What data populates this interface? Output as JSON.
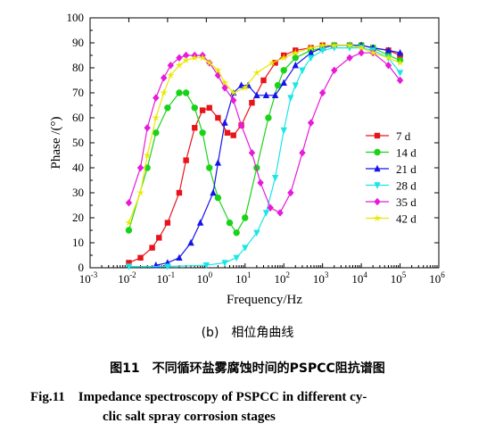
{
  "chart_data": {
    "type": "line",
    "xlabel": "Frequency/Hz",
    "ylabel": "Phase /(°)",
    "x_scale": "log",
    "xlim": [
      0.001,
      1000000
    ],
    "ylim": [
      0,
      100
    ],
    "x_ticks": [
      0.001,
      0.01,
      0.1,
      1,
      10,
      100,
      1000,
      10000,
      100000,
      1000000
    ],
    "x_tick_labels": [
      [
        "10",
        "-3"
      ],
      [
        "10",
        "-2"
      ],
      [
        "10",
        "-1"
      ],
      [
        "10",
        "0"
      ],
      [
        "10",
        "1"
      ],
      [
        "10",
        "2"
      ],
      [
        "10",
        "3"
      ],
      [
        "10",
        "4"
      ],
      [
        "10",
        "5"
      ],
      [
        "10",
        "6"
      ]
    ],
    "y_ticks": [
      0,
      10,
      20,
      30,
      40,
      50,
      60,
      70,
      80,
      90,
      100
    ],
    "legend_position": "right",
    "series": [
      {
        "name": "7 d",
        "color": "#e8141b",
        "marker": "square",
        "points": [
          [
            0.01,
            2
          ],
          [
            0.02,
            4
          ],
          [
            0.04,
            8
          ],
          [
            0.06,
            12
          ],
          [
            0.1,
            18
          ],
          [
            0.2,
            30
          ],
          [
            0.3,
            43
          ],
          [
            0.5,
            56
          ],
          [
            0.8,
            63
          ],
          [
            1.2,
            64
          ],
          [
            2,
            60
          ],
          [
            3.5,
            54
          ],
          [
            5,
            53
          ],
          [
            8,
            57
          ],
          [
            15,
            66
          ],
          [
            30,
            75
          ],
          [
            60,
            82
          ],
          [
            100,
            85
          ],
          [
            200,
            87
          ],
          [
            500,
            88
          ],
          [
            1000,
            89
          ],
          [
            2000,
            89
          ],
          [
            5000,
            89
          ],
          [
            10000,
            89
          ],
          [
            20000,
            88
          ],
          [
            50000,
            87
          ],
          [
            100000,
            85
          ]
        ]
      },
      {
        "name": "14 d",
        "color": "#19d319",
        "marker": "circle",
        "points": [
          [
            0.01,
            15
          ],
          [
            0.03,
            40
          ],
          [
            0.05,
            54
          ],
          [
            0.1,
            64
          ],
          [
            0.2,
            70
          ],
          [
            0.3,
            70
          ],
          [
            0.5,
            64
          ],
          [
            0.8,
            54
          ],
          [
            1.2,
            40
          ],
          [
            2,
            28
          ],
          [
            4,
            18
          ],
          [
            6,
            14
          ],
          [
            10,
            20
          ],
          [
            20,
            40
          ],
          [
            40,
            60
          ],
          [
            70,
            73
          ],
          [
            100,
            79
          ],
          [
            200,
            84
          ],
          [
            500,
            87
          ],
          [
            1000,
            88
          ],
          [
            2000,
            89
          ],
          [
            5000,
            89
          ],
          [
            10000,
            89
          ],
          [
            20000,
            88
          ],
          [
            50000,
            85
          ],
          [
            100000,
            83
          ]
        ]
      },
      {
        "name": "21 d",
        "color": "#1515e8",
        "marker": "triangle-up",
        "points": [
          [
            0.05,
            1
          ],
          [
            0.1,
            2
          ],
          [
            0.2,
            4
          ],
          [
            0.4,
            10
          ],
          [
            0.7,
            18
          ],
          [
            1.5,
            30
          ],
          [
            2,
            42
          ],
          [
            3,
            58
          ],
          [
            5,
            70
          ],
          [
            8,
            73
          ],
          [
            12,
            73
          ],
          [
            20,
            69
          ],
          [
            35,
            69
          ],
          [
            60,
            69
          ],
          [
            100,
            74
          ],
          [
            200,
            81
          ],
          [
            500,
            86
          ],
          [
            1000,
            88
          ],
          [
            2000,
            89
          ],
          [
            5000,
            89
          ],
          [
            10000,
            89
          ],
          [
            20000,
            88
          ],
          [
            50000,
            87
          ],
          [
            100000,
            86
          ]
        ]
      },
      {
        "name": "28 d",
        "color": "#19e6e6",
        "marker": "triangle-down",
        "points": [
          [
            0.01,
            0.5
          ],
          [
            0.1,
            0.5
          ],
          [
            1,
            1
          ],
          [
            3,
            2
          ],
          [
            6,
            4
          ],
          [
            10,
            8
          ],
          [
            20,
            14
          ],
          [
            35,
            22
          ],
          [
            60,
            36
          ],
          [
            100,
            55
          ],
          [
            150,
            68
          ],
          [
            200,
            73
          ],
          [
            300,
            79
          ],
          [
            500,
            84
          ],
          [
            1000,
            87
          ],
          [
            2000,
            88
          ],
          [
            5000,
            88
          ],
          [
            10000,
            88
          ],
          [
            20000,
            87
          ],
          [
            50000,
            84
          ],
          [
            100000,
            78
          ]
        ]
      },
      {
        "name": "35 d",
        "color": "#e61ad9",
        "marker": "diamond",
        "points": [
          [
            0.01,
            26
          ],
          [
            0.02,
            40
          ],
          [
            0.03,
            56
          ],
          [
            0.05,
            68
          ],
          [
            0.08,
            76
          ],
          [
            0.12,
            81
          ],
          [
            0.2,
            84
          ],
          [
            0.3,
            85
          ],
          [
            0.5,
            85
          ],
          [
            0.8,
            85
          ],
          [
            1.2,
            82
          ],
          [
            2,
            77
          ],
          [
            3,
            72
          ],
          [
            5,
            67
          ],
          [
            8,
            57
          ],
          [
            15,
            46
          ],
          [
            25,
            34
          ],
          [
            45,
            24
          ],
          [
            80,
            22
          ],
          [
            150,
            30
          ],
          [
            300,
            46
          ],
          [
            500,
            58
          ],
          [
            1000,
            70
          ],
          [
            2000,
            79
          ],
          [
            5000,
            84
          ],
          [
            10000,
            86
          ],
          [
            20000,
            86
          ],
          [
            50000,
            81
          ],
          [
            100000,
            75
          ]
        ]
      },
      {
        "name": "42 d",
        "color": "#e8e800",
        "marker": "star",
        "points": [
          [
            0.01,
            18
          ],
          [
            0.02,
            30
          ],
          [
            0.03,
            45
          ],
          [
            0.05,
            60
          ],
          [
            0.08,
            70
          ],
          [
            0.12,
            77
          ],
          [
            0.2,
            81
          ],
          [
            0.3,
            83
          ],
          [
            0.5,
            84
          ],
          [
            0.8,
            84
          ],
          [
            1.2,
            82
          ],
          [
            2,
            79
          ],
          [
            3,
            74
          ],
          [
            5,
            70
          ],
          [
            10,
            72
          ],
          [
            20,
            78
          ],
          [
            50,
            82
          ],
          [
            100,
            84
          ],
          [
            200,
            86
          ],
          [
            500,
            88
          ],
          [
            1000,
            89
          ],
          [
            2000,
            89
          ],
          [
            5000,
            89
          ],
          [
            10000,
            88
          ],
          [
            20000,
            86
          ],
          [
            50000,
            84
          ],
          [
            100000,
            82
          ]
        ]
      }
    ]
  },
  "caption": {
    "sub": "(b)　相位角曲线",
    "cn": "图11　不同循环盐雾腐蚀时间的PSPCC阻抗谱图",
    "en_line1": "Fig.11　Impedance spectroscopy of PSPCC in different cy-",
    "en_line2": "clic salt spray corrosion stages"
  }
}
